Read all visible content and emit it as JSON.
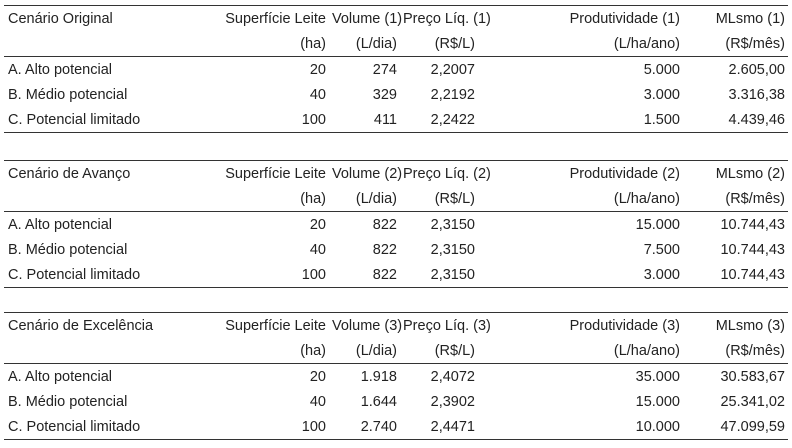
{
  "tables": [
    {
      "header": [
        "Cenário Original",
        "Superfície Leite",
        "Volume (1)",
        "Preço Líq. (1)",
        "Produtividade (1)",
        "MLsmo (1)"
      ],
      "units": [
        "(ha)",
        "(L/dia)",
        "(R$/L)",
        "(L/ha/ano)",
        "(R$/mês)"
      ],
      "rows": [
        [
          "A. Alto potencial",
          "20",
          "274",
          "2,2007",
          "5.000",
          "2.605,00"
        ],
        [
          "B. Médio potencial",
          "40",
          "329",
          "2,2192",
          "3.000",
          "3.316,38"
        ],
        [
          "C. Potencial limitado",
          "100",
          "411",
          "2,2422",
          "1.500",
          "4.439,46"
        ]
      ]
    },
    {
      "header": [
        "Cenário de Avanço",
        "Superfície Leite",
        "Volume (2)",
        "Preço Líq. (2)",
        "Produtividade (2)",
        "MLsmo (2)"
      ],
      "units": [
        "(ha)",
        "(L/dia)",
        "(R$/L)",
        "(L/ha/ano)",
        "(R$/mês)"
      ],
      "rows": [
        [
          "A. Alto potencial",
          "20",
          "822",
          "2,3150",
          "15.000",
          "10.744,43"
        ],
        [
          "B. Médio potencial",
          "40",
          "822",
          "2,3150",
          "7.500",
          "10.744,43"
        ],
        [
          "C. Potencial limitado",
          "100",
          "822",
          "2,3150",
          "3.000",
          "10.744,43"
        ]
      ]
    },
    {
      "header": [
        "Cenário de Excelência",
        "Superfície Leite",
        "Volume (3)",
        "Preço Líq. (3)",
        "Produtividade (3)",
        "MLsmo (3)"
      ],
      "units": [
        "(ha)",
        "(L/dia)",
        "(R$/L)",
        "(L/ha/ano)",
        "(R$/mês)"
      ],
      "rows": [
        [
          "A. Alto potencial",
          "20",
          "1.918",
          "2,4072",
          "35.000",
          "30.583,67"
        ],
        [
          "B. Médio potencial",
          "40",
          "1.644",
          "2,3902",
          "15.000",
          "25.341,02"
        ],
        [
          "C. Potencial limitado",
          "100",
          "2.740",
          "2,4471",
          "10.000",
          "47.099,59"
        ]
      ]
    }
  ]
}
